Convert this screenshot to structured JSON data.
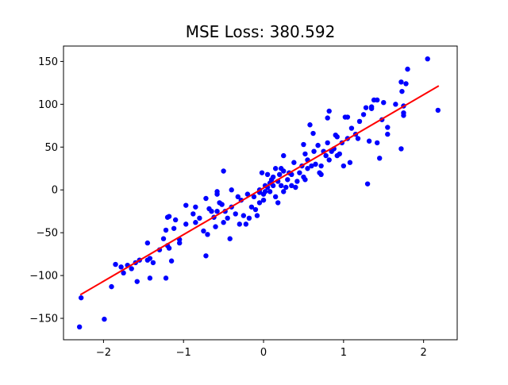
{
  "chart_data": {
    "type": "scatter",
    "title": "MSE Loss: 380.592",
    "xlabel": "",
    "ylabel": "",
    "xlim": [
      -2.5,
      2.42
    ],
    "ylim": [
      -175,
      168
    ],
    "grid": false,
    "x_ticks": [
      -2,
      -1,
      0,
      1,
      2
    ],
    "y_ticks": [
      -150,
      -100,
      -50,
      0,
      50,
      100,
      150
    ],
    "colors": {
      "points": "#0000ff",
      "fit_line": "#ff0000"
    },
    "fit_line": {
      "x": [
        -2.29,
        2.19
      ],
      "y": [
        -122.5,
        121.5
      ]
    },
    "series": [
      {
        "marker": "circle",
        "points": [
          [
            -2.3,
            -160
          ],
          [
            -2.28,
            -126
          ],
          [
            -1.99,
            -151
          ],
          [
            -1.9,
            -113
          ],
          [
            -1.85,
            -87
          ],
          [
            -1.78,
            -90
          ],
          [
            -1.75,
            -97
          ],
          [
            -1.7,
            -88
          ],
          [
            -1.65,
            -92
          ],
          [
            -1.6,
            -85
          ],
          [
            -1.58,
            -107
          ],
          [
            -1.55,
            -82
          ],
          [
            -1.45,
            -62
          ],
          [
            -1.45,
            -82
          ],
          [
            -1.42,
            -80
          ],
          [
            -1.42,
            -103
          ],
          [
            -1.38,
            -85
          ],
          [
            -1.3,
            -70
          ],
          [
            -1.25,
            -57
          ],
          [
            -1.22,
            -47
          ],
          [
            -1.22,
            -103
          ],
          [
            -1.2,
            -32
          ],
          [
            -1.2,
            -65
          ],
          [
            -1.18,
            -31
          ],
          [
            -1.18,
            -68
          ],
          [
            -1.15,
            -83
          ],
          [
            -1.12,
            -45
          ],
          [
            -1.1,
            -35
          ],
          [
            -1.05,
            -58
          ],
          [
            -1.05,
            -62
          ],
          [
            -0.97,
            -18
          ],
          [
            -0.97,
            -40
          ],
          [
            -0.88,
            -28
          ],
          [
            -0.85,
            -20
          ],
          [
            -0.85,
            -38
          ],
          [
            -0.8,
            -33
          ],
          [
            -0.75,
            -48
          ],
          [
            -0.72,
            -77
          ],
          [
            -0.72,
            -10
          ],
          [
            -0.7,
            -52
          ],
          [
            -0.68,
            -22
          ],
          [
            -0.65,
            -25
          ],
          [
            -0.62,
            -32
          ],
          [
            -0.6,
            -43
          ],
          [
            -0.58,
            -25
          ],
          [
            -0.58,
            -2
          ],
          [
            -0.58,
            -5
          ],
          [
            -0.55,
            -15
          ],
          [
            -0.52,
            -17
          ],
          [
            -0.5,
            22
          ],
          [
            -0.5,
            -38
          ],
          [
            -0.48,
            -25
          ],
          [
            -0.45,
            -33
          ],
          [
            -0.42,
            -57
          ],
          [
            -0.4,
            -20
          ],
          [
            -0.4,
            0
          ],
          [
            -0.35,
            -28
          ],
          [
            -0.32,
            -8
          ],
          [
            -0.3,
            -40
          ],
          [
            -0.28,
            -12
          ],
          [
            -0.25,
            -30
          ],
          [
            -0.22,
            -40
          ],
          [
            -0.2,
            -5
          ],
          [
            -0.18,
            -33
          ],
          [
            -0.15,
            -20
          ],
          [
            -0.12,
            -8
          ],
          [
            -0.1,
            -23
          ],
          [
            -0.08,
            -30
          ],
          [
            -0.05,
            -3
          ],
          [
            -0.05,
            0
          ],
          [
            -0.05,
            -15
          ],
          [
            -0.02,
            20
          ],
          [
            0.0,
            -12
          ],
          [
            0.0,
            -5
          ],
          [
            0.02,
            5
          ],
          [
            0.02,
            -2
          ],
          [
            0.05,
            18
          ],
          [
            0.05,
            3
          ],
          [
            0.08,
            8
          ],
          [
            0.08,
            -2
          ],
          [
            0.1,
            12
          ],
          [
            0.12,
            15
          ],
          [
            0.12,
            5
          ],
          [
            0.15,
            -8
          ],
          [
            0.15,
            25
          ],
          [
            0.18,
            10
          ],
          [
            0.18,
            -15
          ],
          [
            0.2,
            18
          ],
          [
            0.22,
            25
          ],
          [
            0.22,
            5
          ],
          [
            0.25,
            22
          ],
          [
            0.25,
            -2
          ],
          [
            0.25,
            40
          ],
          [
            0.28,
            3
          ],
          [
            0.3,
            12
          ],
          [
            0.32,
            20
          ],
          [
            0.35,
            5
          ],
          [
            0.35,
            18
          ],
          [
            0.38,
            32
          ],
          [
            0.4,
            3
          ],
          [
            0.42,
            10
          ],
          [
            0.45,
            20
          ],
          [
            0.48,
            28
          ],
          [
            0.5,
            15
          ],
          [
            0.5,
            53
          ],
          [
            0.52,
            12
          ],
          [
            0.52,
            42
          ],
          [
            0.55,
            35
          ],
          [
            0.55,
            25
          ],
          [
            0.58,
            76
          ],
          [
            0.6,
            28
          ],
          [
            0.62,
            66
          ],
          [
            0.63,
            45
          ],
          [
            0.65,
            30
          ],
          [
            0.68,
            52
          ],
          [
            0.7,
            20
          ],
          [
            0.72,
            28
          ],
          [
            0.72,
            18
          ],
          [
            0.75,
            45
          ],
          [
            0.78,
            40
          ],
          [
            0.8,
            84
          ],
          [
            0.8,
            55
          ],
          [
            0.82,
            92
          ],
          [
            0.82,
            35
          ],
          [
            0.85,
            45
          ],
          [
            0.88,
            48
          ],
          [
            0.9,
            64
          ],
          [
            0.92,
            62
          ],
          [
            0.92,
            40
          ],
          [
            0.95,
            42
          ],
          [
            0.98,
            55
          ],
          [
            1.0,
            28
          ],
          [
            1.02,
            85
          ],
          [
            1.05,
            85
          ],
          [
            1.05,
            60
          ],
          [
            1.08,
            32
          ],
          [
            1.1,
            72
          ],
          [
            1.15,
            65
          ],
          [
            1.18,
            60
          ],
          [
            1.2,
            80
          ],
          [
            1.25,
            88
          ],
          [
            1.28,
            96
          ],
          [
            1.3,
            7
          ],
          [
            1.32,
            57
          ],
          [
            1.35,
            97
          ],
          [
            1.35,
            95
          ],
          [
            1.38,
            105
          ],
          [
            1.42,
            55
          ],
          [
            1.42,
            105
          ],
          [
            1.45,
            37
          ],
          [
            1.48,
            82
          ],
          [
            1.5,
            102
          ],
          [
            1.55,
            65
          ],
          [
            1.55,
            73
          ],
          [
            1.65,
            100
          ],
          [
            1.72,
            48
          ],
          [
            1.72,
            126
          ],
          [
            1.73,
            115
          ],
          [
            1.75,
            90
          ],
          [
            1.75,
            87
          ],
          [
            1.75,
            98
          ],
          [
            1.78,
            124
          ],
          [
            1.8,
            141
          ],
          [
            2.05,
            153
          ],
          [
            2.18,
            93
          ]
        ]
      }
    ]
  }
}
